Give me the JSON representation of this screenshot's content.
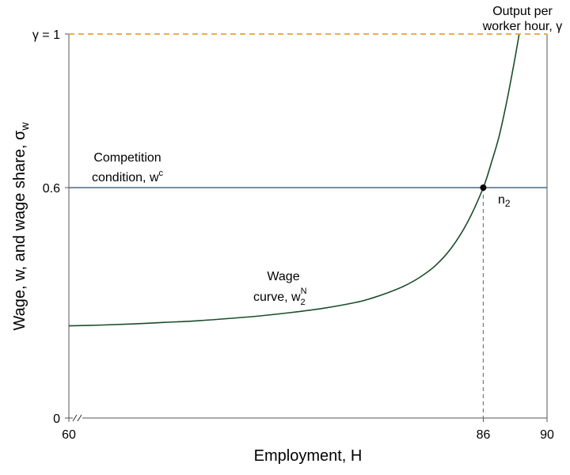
{
  "chart_data": {
    "type": "line",
    "xlabel": "Employment, H",
    "ylabel_main": "Wage, w, and wage share, σ",
    "ylabel_sub": "w",
    "xlim": [
      60,
      90
    ],
    "ylim": [
      0,
      1
    ],
    "x_axis_break": true,
    "grid": false,
    "x_ticks": [
      {
        "value": 60,
        "label": "60"
      },
      {
        "value": 86,
        "label": "86"
      },
      {
        "value": 90,
        "label": "90"
      }
    ],
    "y_ticks": [
      {
        "value": 0,
        "label": "0"
      },
      {
        "value": 0.6,
        "label": "0.6"
      },
      {
        "value": 1,
        "label": "γ = 1"
      }
    ],
    "series": [
      {
        "id": "wage-curve",
        "color": "#1b4d2a",
        "style": "solid",
        "x": [
          60,
          62,
          64,
          66,
          68,
          70,
          72,
          74,
          76,
          78,
          79,
          80,
          81,
          82,
          83,
          84,
          85,
          86,
          86.5,
          87,
          87.5,
          88,
          88.25
        ],
        "y": [
          0.24,
          0.242,
          0.245,
          0.249,
          0.253,
          0.259,
          0.266,
          0.275,
          0.286,
          0.301,
          0.312,
          0.326,
          0.343,
          0.366,
          0.397,
          0.443,
          0.509,
          0.6,
          0.664,
          0.735,
          0.83,
          0.94,
          1.0
        ]
      },
      {
        "id": "competition-condition",
        "color": "#4a6b86",
        "style": "solid",
        "x": [
          60,
          90
        ],
        "y": [
          0.6,
          0.6
        ]
      },
      {
        "id": "output-per-worker-hour",
        "color": "#e8a33a",
        "style": "dashed",
        "x": [
          60,
          90
        ],
        "y": [
          1,
          1
        ]
      }
    ],
    "points": [
      {
        "x": 86,
        "y": 0.6,
        "label": "n",
        "sub": "2",
        "guide_color": "#777777"
      }
    ],
    "annotations": {
      "output": {
        "line1": "Output per",
        "line2": "worker hour, γ"
      },
      "competition": {
        "line1": "Competition",
        "line2_text": "condition, w",
        "line2_sup": "c"
      },
      "wage": {
        "line1": "Wage",
        "line2_text": "curve, w",
        "line2_sup": "N",
        "line2_sub": "2"
      }
    }
  }
}
